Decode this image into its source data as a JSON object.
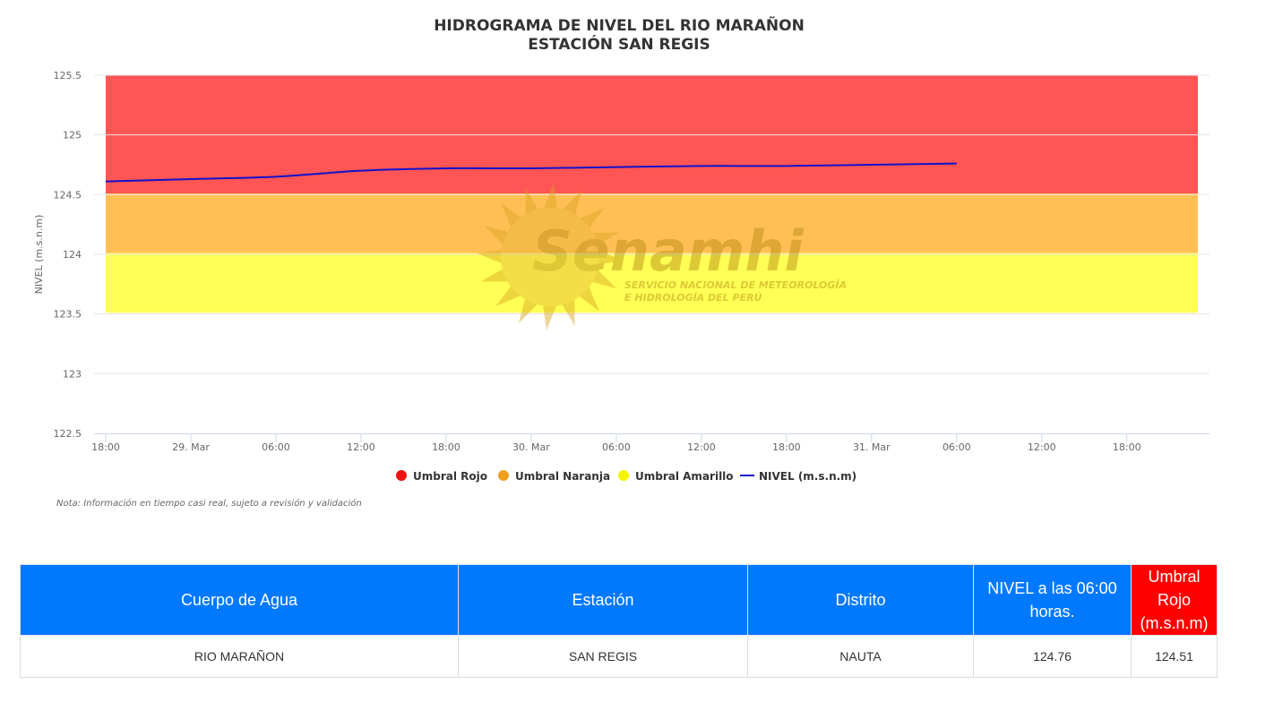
{
  "chart_data": {
    "type": "line",
    "title": "HIDROGRAMA DE NIVEL DEL RIO MARAÑON",
    "subtitle": "ESTACIÓN SAN REGIS",
    "ylabel": "NIVEL (m.s.n.m)",
    "ylim": [
      122.5,
      125.5
    ],
    "yticks": [
      "125.5",
      "125",
      "124.5",
      "124",
      "123.5",
      "123",
      "122.5"
    ],
    "xlim": [
      "2024-03-28 18:00",
      "2024-04-01 00:00"
    ],
    "xticks": [
      {
        "t": "2024-03-28 18:00",
        "label": "18:00"
      },
      {
        "t": "2024-03-29 00:00",
        "label": "29. Mar"
      },
      {
        "t": "2024-03-29 06:00",
        "label": "06:00"
      },
      {
        "t": "2024-03-29 12:00",
        "label": "12:00"
      },
      {
        "t": "2024-03-29 18:00",
        "label": "18:00"
      },
      {
        "t": "2024-03-30 00:00",
        "label": "30. Mar"
      },
      {
        "t": "2024-03-30 06:00",
        "label": "06:00"
      },
      {
        "t": "2024-03-30 12:00",
        "label": "12:00"
      },
      {
        "t": "2024-03-30 18:00",
        "label": "18:00"
      },
      {
        "t": "2024-03-31 00:00",
        "label": "31. Mar"
      },
      {
        "t": "2024-03-31 06:00",
        "label": "06:00"
      },
      {
        "t": "2024-03-31 12:00",
        "label": "12:00"
      },
      {
        "t": "2024-03-31 18:00",
        "label": "18:00"
      }
    ],
    "bands": [
      {
        "name": "Umbral Rojo",
        "from": 124.51,
        "to": 125.5,
        "color": "#ff5555",
        "legend_color": "#ee1111"
      },
      {
        "name": "Umbral Naranja",
        "from": 124.01,
        "to": 124.51,
        "color": "#ffbf55",
        "legend_color": "#f0a020"
      },
      {
        "name": "Umbral Amarillo",
        "from": 123.51,
        "to": 124.01,
        "color": "#ffff55",
        "legend_color": "#f5f500"
      }
    ],
    "series": [
      {
        "name": "NIVEL (m.s.n.m)",
        "color": "#1111cc",
        "x": [
          "2024-03-28 18:00",
          "2024-03-29 00:00",
          "2024-03-29 06:00",
          "2024-03-29 12:00",
          "2024-03-29 18:00",
          "2024-03-30 00:00",
          "2024-03-30 06:00",
          "2024-03-30 12:00",
          "2024-03-30 18:00",
          "2024-03-31 00:00",
          "2024-03-31 06:00"
        ],
        "values": [
          124.61,
          124.63,
          124.65,
          124.7,
          124.72,
          124.72,
          124.73,
          124.74,
          124.74,
          124.75,
          124.76
        ]
      }
    ],
    "grid": true,
    "legend_position": "bottom"
  },
  "watermark": {
    "brand": "Senamhi",
    "line1": "SERVICIO NACIONAL DE METEOROLOGÍA",
    "line2": "E HIDROLOGÍA DEL PERÚ"
  },
  "note": "Nota: Información en tiempo casi real, sujeto a revisión y validación",
  "table": {
    "headers": [
      "Cuerpo de Agua",
      "Estación",
      "Distrito",
      "NIVEL a las 06:00 horas.",
      "Umbral Rojo (m.s.n.m)"
    ],
    "row": [
      "RIO MARAÑON",
      "SAN REGIS",
      "NAUTA",
      "124.76",
      "124.51"
    ]
  }
}
